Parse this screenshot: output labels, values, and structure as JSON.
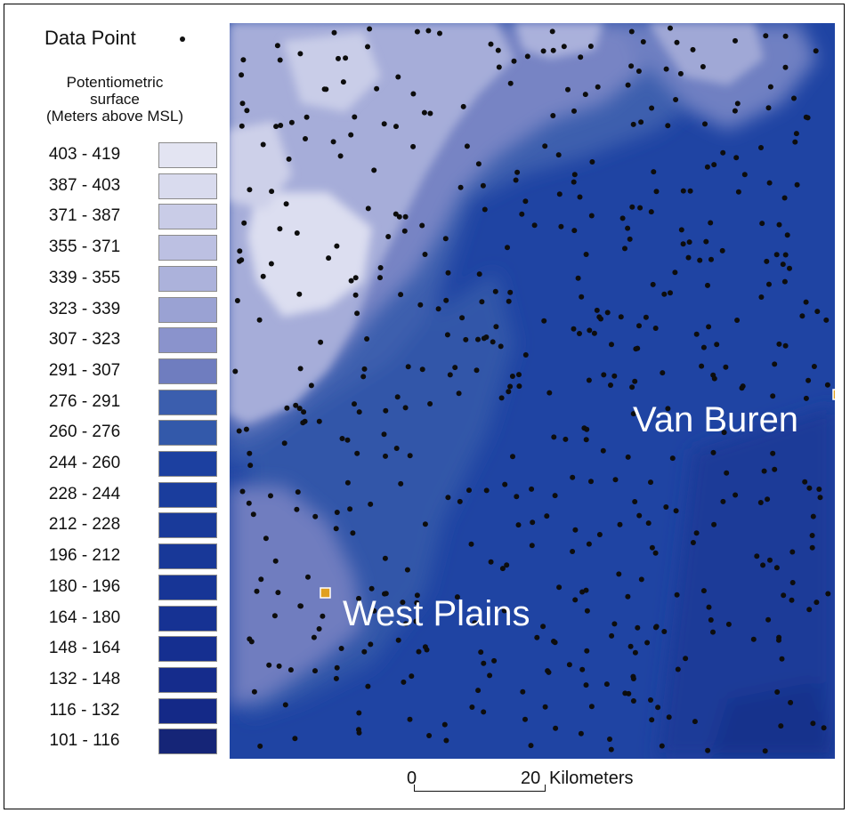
{
  "legend": {
    "data_point_label": "Data Point",
    "surface_title_line1": "Potentiometric",
    "surface_title_line2": "surface",
    "surface_title_line3": "(Meters above MSL)",
    "classes": [
      {
        "label": "403 - 419",
        "color": "#e3e4f2"
      },
      {
        "label": "387 - 403",
        "color": "#d9dbee"
      },
      {
        "label": "371 - 387",
        "color": "#c9cce7"
      },
      {
        "label": "355 - 371",
        "color": "#bcc0e2"
      },
      {
        "label": "339 - 355",
        "color": "#acb2db"
      },
      {
        "label": "323 - 339",
        "color": "#9aa2d3"
      },
      {
        "label": "307 - 323",
        "color": "#8a93cc"
      },
      {
        "label": "291 - 307",
        "color": "#6f7dbf"
      },
      {
        "label": "276 - 291",
        "color": "#3b5eae"
      },
      {
        "label": "260 - 276",
        "color": "#3359aa"
      },
      {
        "label": "244 - 260",
        "color": "#1c40a0"
      },
      {
        "label": "228 - 244",
        "color": "#1a3d9d"
      },
      {
        "label": "212 - 228",
        "color": "#193a9a"
      },
      {
        "label": "196 - 212",
        "color": "#183898"
      },
      {
        "label": "180 - 196",
        "color": "#173596"
      },
      {
        "label": "164 - 180",
        "color": "#163293"
      },
      {
        "label": "148 - 164",
        "color": "#152f90"
      },
      {
        "label": "132 - 148",
        "color": "#152c8c"
      },
      {
        "label": "116 - 132",
        "color": "#142987"
      },
      {
        "label": "101 - 116",
        "color": "#152577"
      }
    ]
  },
  "cities": {
    "van_buren": "Van Buren",
    "west_plains": "West Plains",
    "marker_color": "#e0a020"
  },
  "scale": {
    "start": "0",
    "end": "20",
    "unit": "Kilometers"
  }
}
